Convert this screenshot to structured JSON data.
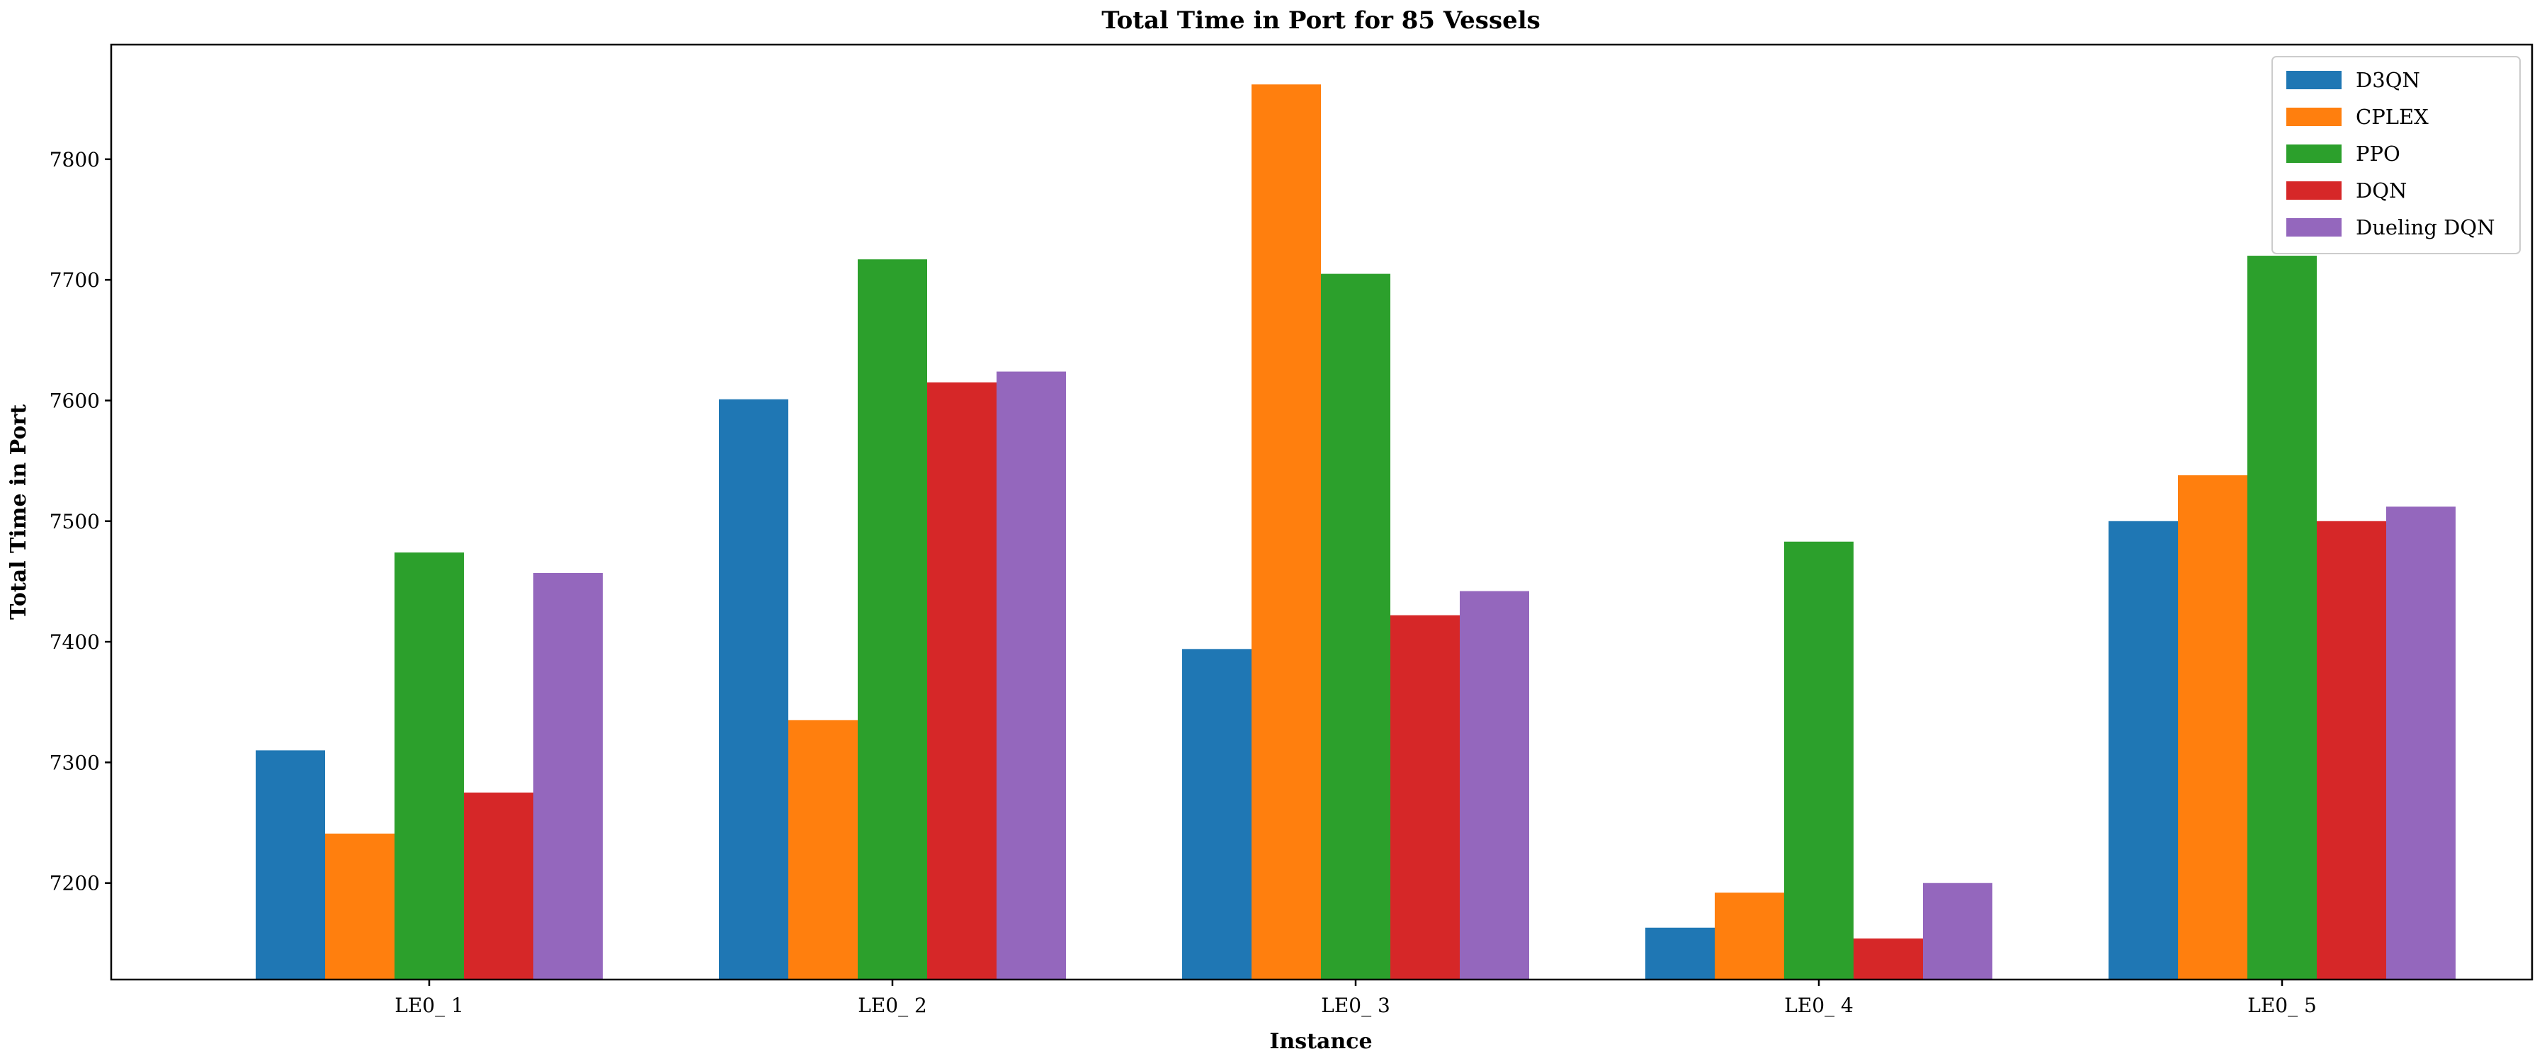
{
  "chart_data": {
    "type": "bar",
    "title": "Total Time in Port for 85 Vessels",
    "xlabel": "Instance",
    "ylabel": "Total Time in Port",
    "categories": [
      "LE0_ 1",
      "LE0_ 2",
      "LE0_ 3",
      "LE0_ 4",
      "LE0_ 5"
    ],
    "ylim": [
      7120,
      7895
    ],
    "yticks": [
      7200,
      7300,
      7400,
      7500,
      7600,
      7700,
      7800
    ],
    "grid": false,
    "legend_position": "top-right",
    "series": [
      {
        "name": "D3QN",
        "color": "#1f77b4",
        "values": [
          7310,
          7601,
          7394,
          7163,
          7500
        ]
      },
      {
        "name": "CPLEX",
        "color": "#ff7f0e",
        "values": [
          7241,
          7335,
          7862,
          7192,
          7538
        ]
      },
      {
        "name": "PPO",
        "color": "#2ca02c",
        "values": [
          7474,
          7717,
          7705,
          7483,
          7720
        ]
      },
      {
        "name": "DQN",
        "color": "#d62728",
        "values": [
          7275,
          7615,
          7422,
          7154,
          7500
        ]
      },
      {
        "name": "Dueling DQN",
        "color": "#9467bd",
        "values": [
          7457,
          7624,
          7442,
          7200,
          7512
        ]
      }
    ]
  }
}
